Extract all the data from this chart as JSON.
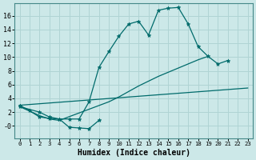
{
  "xlabel": "Humidex (Indice chaleur)",
  "bg_color": "#cce8e8",
  "grid_color": "#b0d4d4",
  "line_color": "#006b6b",
  "xlim": [
    -0.5,
    23.5
  ],
  "ylim": [
    -1.8,
    17.8
  ],
  "xticks": [
    0,
    1,
    2,
    3,
    4,
    5,
    6,
    7,
    8,
    9,
    10,
    11,
    12,
    13,
    14,
    15,
    16,
    17,
    18,
    19,
    20,
    21,
    22,
    23
  ],
  "yticks": [
    0,
    2,
    4,
    6,
    8,
    10,
    12,
    14,
    16
  ],
  "ytick_labels": [
    "-0",
    "2",
    "4",
    "6",
    "8",
    "10",
    "12",
    "14",
    "16"
  ],
  "line1_x": [
    0,
    1,
    2,
    3,
    4,
    5,
    6,
    7,
    8,
    9,
    10,
    11,
    12,
    13,
    14,
    15,
    16,
    17,
    18,
    19,
    20,
    21
  ],
  "line1_y": [
    3.0,
    2.2,
    1.3,
    1.1,
    1.0,
    1.0,
    1.0,
    3.5,
    8.5,
    10.8,
    13.0,
    14.8,
    15.2,
    13.2,
    16.8,
    17.1,
    17.2,
    14.8,
    11.5,
    10.1,
    9.0,
    9.5
  ],
  "line2_x": [
    0,
    2,
    3,
    4,
    5,
    6,
    7,
    8
  ],
  "line2_y": [
    2.8,
    2.0,
    1.3,
    1.0,
    -0.2,
    -0.3,
    -0.4,
    0.8
  ],
  "line3_x": [
    0,
    23
  ],
  "line3_y": [
    3.0,
    5.5
  ],
  "line4_x": [
    0,
    2,
    3,
    4,
    9,
    10,
    11,
    12,
    13,
    14,
    15,
    16,
    17,
    18,
    19
  ],
  "line4_y": [
    2.8,
    1.5,
    1.0,
    0.8,
    3.5,
    4.2,
    5.0,
    5.8,
    6.5,
    7.2,
    7.8,
    8.4,
    9.0,
    9.6,
    10.1
  ]
}
